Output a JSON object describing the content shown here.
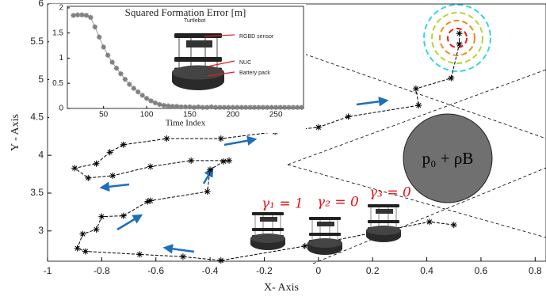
{
  "chart_data": [
    {
      "type": "line",
      "xlabel": "X- Axis",
      "ylabel": "Y - Axis",
      "x": [
        0.5,
        0.41,
        -0.05,
        -0.36,
        -0.5,
        -0.66,
        -0.86,
        -0.89,
        -0.87,
        -0.82,
        -0.8,
        -0.72,
        -0.63,
        -0.62,
        -0.41,
        -0.4,
        -0.35,
        -0.33,
        -0.47,
        -0.62,
        -0.76,
        -0.85,
        -0.9,
        -0.82,
        -0.77,
        -0.72,
        -0.56,
        -0.36,
        -0.16,
        0.0,
        0.11,
        0.37,
        0.36,
        0.49,
        0.52,
        0.52
      ],
      "values": [
        3.08,
        3.12,
        2.8,
        2.61,
        2.66,
        2.69,
        2.73,
        2.77,
        2.96,
        3.02,
        3.19,
        3.2,
        3.39,
        3.4,
        3.52,
        3.81,
        3.92,
        3.93,
        3.93,
        3.85,
        3.73,
        3.7,
        3.83,
        3.89,
        4.04,
        4.14,
        4.22,
        4.22,
        4.31,
        4.37,
        4.51,
        4.66,
        4.88,
        5.02,
        5.47,
        5.61
      ],
      "color": "#000000",
      "xlim": [
        -1,
        0.84
      ],
      "ylim": [
        2.6,
        6
      ],
      "xticks": [
        -1,
        -0.8,
        -0.6,
        -0.4,
        -0.2,
        0,
        0.2,
        0.4,
        0.6,
        0.8
      ],
      "yticks": [
        3,
        3.5,
        4,
        4.5,
        5,
        5.5,
        6
      ],
      "annotations": [
        "γ₁ = 1",
        "γ₂ = 0",
        "γ₃ = 0",
        "p₀ + ρB"
      ]
    },
    {
      "type": "line",
      "title": "Squared Formation Error [m]",
      "xlabel": "Time Index",
      "x": [
        15,
        20,
        25,
        30,
        35,
        40,
        45,
        50,
        55,
        60,
        65,
        70,
        75,
        80,
        85,
        90,
        95,
        100,
        105,
        110,
        115,
        120,
        125,
        130,
        135,
        140,
        145,
        150,
        155,
        160,
        165,
        170,
        175,
        180,
        185,
        190,
        195,
        200,
        205,
        210,
        215,
        220,
        225,
        230,
        235,
        240,
        245,
        250,
        255,
        260,
        265,
        270,
        275,
        280
      ],
      "values": [
        1.85,
        1.86,
        1.86,
        1.85,
        1.81,
        1.62,
        1.42,
        1.22,
        1.06,
        0.92,
        0.8,
        0.69,
        0.58,
        0.48,
        0.4,
        0.33,
        0.26,
        0.2,
        0.15,
        0.11,
        0.08,
        0.06,
        0.05,
        0.04,
        0.04,
        0.03,
        0.03,
        0.03,
        0.02,
        0.03,
        0.02,
        0.02,
        0.03,
        0.02,
        0.02,
        0.02,
        0.02,
        0.02,
        0.02,
        0.02,
        0.02,
        0.02,
        0.02,
        0.02,
        0.02,
        0.02,
        0.02,
        0.02,
        0.02,
        0.02,
        0.02,
        0.02,
        0.02,
        0.02
      ],
      "color": "#808080",
      "xlim": [
        8,
        282
      ],
      "ylim": [
        0,
        2.03
      ],
      "xticks": [
        50,
        100,
        150,
        200,
        250
      ],
      "yticks": [
        0,
        0.5,
        1,
        1.5,
        2
      ],
      "annotations": [
        "Turtlebot",
        "RGBD sensor",
        "NUC",
        "Battery pack"
      ]
    }
  ]
}
